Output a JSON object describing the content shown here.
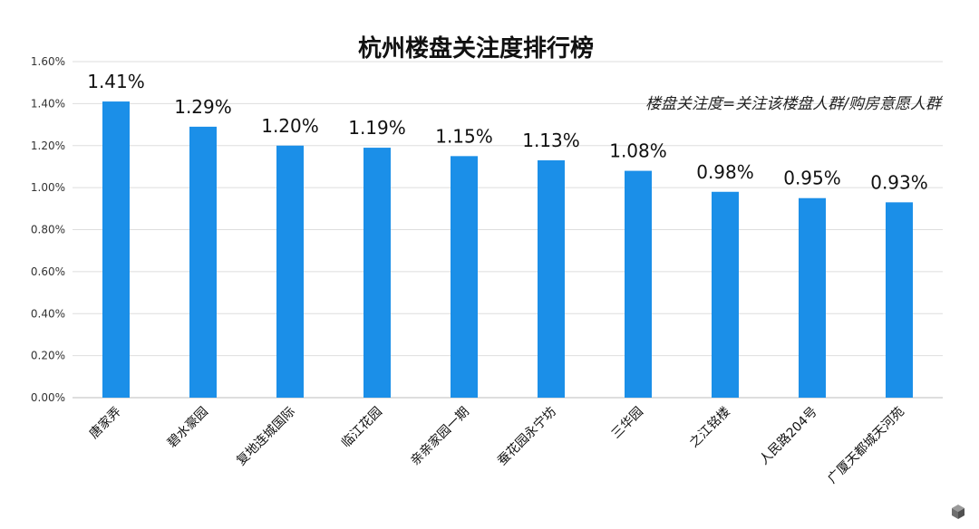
{
  "chart_data": {
    "type": "bar",
    "title": "杭州楼盘关注度排行榜",
    "annotation": "楼盘关注度=关注该楼盘人群/购房意愿人群",
    "categories": [
      "唐家弄",
      "碧水豪园",
      "复地连城国际",
      "临江花园",
      "亲亲家园一期",
      "蚕花园永宁坊",
      "三华园",
      "之江铭楼",
      "人民路204号",
      "广厦天都城天河苑"
    ],
    "values": [
      1.41,
      1.29,
      1.2,
      1.19,
      1.15,
      1.13,
      1.08,
      0.98,
      0.95,
      0.93
    ],
    "value_labels": [
      "1.41%",
      "1.29%",
      "1.20%",
      "1.19%",
      "1.15%",
      "1.13%",
      "1.08%",
      "0.98%",
      "0.95%",
      "0.93%"
    ],
    "y_ticks": [
      0,
      0.2,
      0.4,
      0.6,
      0.8,
      1.0,
      1.2,
      1.4,
      1.6
    ],
    "y_tick_labels": [
      "0.00%",
      "0.20%",
      "0.40%",
      "0.60%",
      "0.80%",
      "1.00%",
      "1.20%",
      "1.40%",
      "1.60%"
    ],
    "ylim": [
      0,
      1.6
    ],
    "grid": true,
    "bar_color": "#1b8fe8",
    "xlabel": "",
    "ylabel": ""
  },
  "watermark_icon": "cube-logo-icon"
}
